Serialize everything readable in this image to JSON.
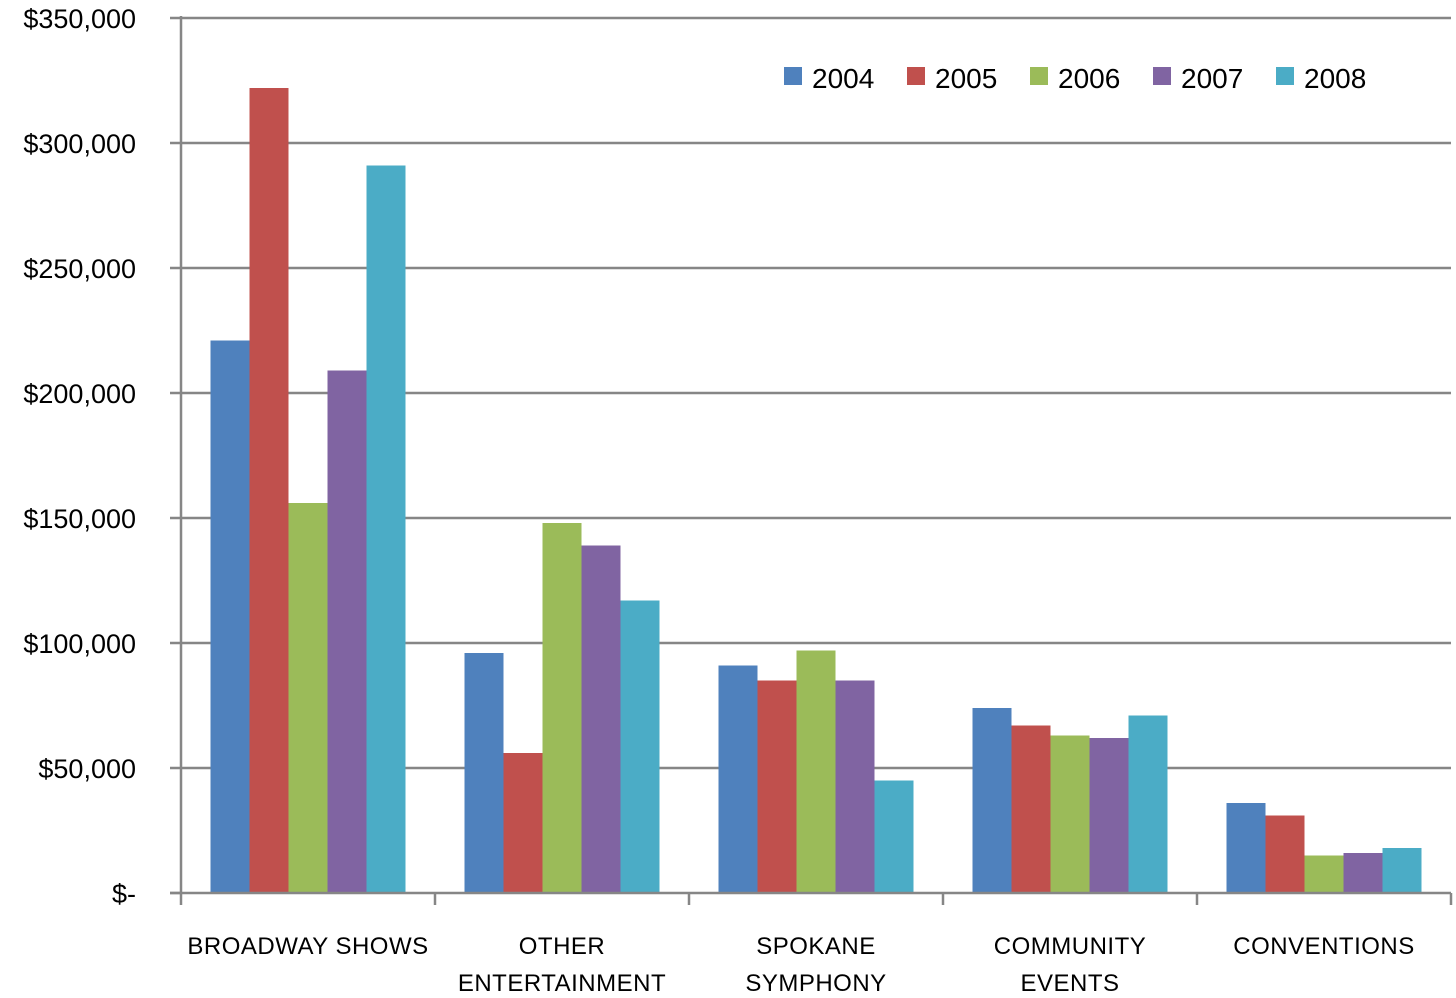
{
  "chart_data": {
    "type": "bar",
    "title": "",
    "xlabel": "",
    "ylabel": "",
    "categories": [
      [
        "BROADWAY SHOWS"
      ],
      [
        "OTHER",
        "ENTERTAINMENT"
      ],
      [
        "SPOKANE",
        "SYMPHONY"
      ],
      [
        "COMMUNITY",
        "EVENTS"
      ],
      [
        "CONVENTIONS"
      ]
    ],
    "series": [
      {
        "name": "2004",
        "color": "#4f81bd",
        "values": [
          221000,
          96000,
          91000,
          74000,
          36000
        ]
      },
      {
        "name": "2005",
        "color": "#c0504d",
        "values": [
          322000,
          56000,
          85000,
          67000,
          31000
        ]
      },
      {
        "name": "2006",
        "color": "#9bbb59",
        "values": [
          156000,
          148000,
          97000,
          63000,
          15000
        ]
      },
      {
        "name": "2007",
        "color": "#8064a2",
        "values": [
          209000,
          139000,
          85000,
          62000,
          16000
        ]
      },
      {
        "name": "2008",
        "color": "#4bacc6",
        "values": [
          291000,
          117000,
          45000,
          71000,
          18000
        ]
      }
    ],
    "ylim": [
      0,
      350000
    ],
    "yticks": [
      0,
      50000,
      100000,
      150000,
      200000,
      250000,
      300000,
      350000
    ],
    "ytick_labels": [
      "$-",
      "$50,000",
      "$100,000",
      "$150,000",
      "$200,000",
      "$250,000",
      "$300,000",
      "$350,000"
    ],
    "grid": true,
    "legend_position": "top-right"
  }
}
